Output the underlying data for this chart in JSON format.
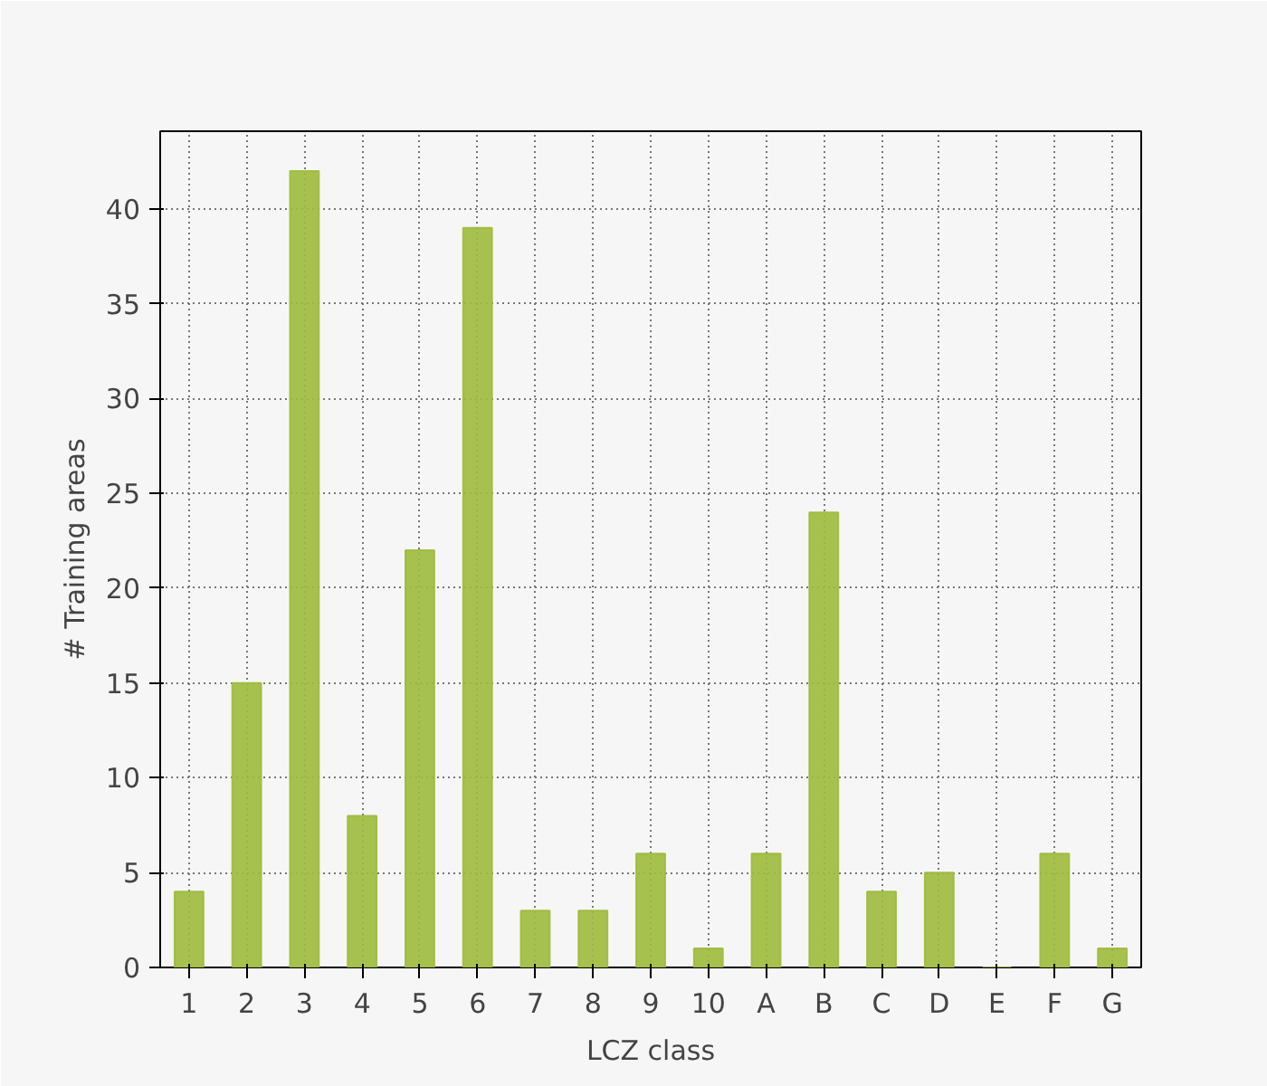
{
  "chart_data": {
    "type": "bar",
    "xlabel": "LCZ class",
    "ylabel": "# Training areas",
    "categories": [
      "1",
      "2",
      "3",
      "4",
      "5",
      "6",
      "7",
      "8",
      "9",
      "10",
      "A",
      "B",
      "C",
      "D",
      "E",
      "F",
      "G"
    ],
    "values": [
      4,
      15,
      42,
      8,
      22,
      39,
      3,
      3,
      6,
      1,
      6,
      24,
      4,
      5,
      0,
      6,
      1
    ],
    "color": "#9dbb3c",
    "ylim": [
      0,
      44.1
    ],
    "yticks": [
      0,
      5,
      10,
      15,
      20,
      25,
      30,
      35,
      40
    ],
    "grid": true
  }
}
